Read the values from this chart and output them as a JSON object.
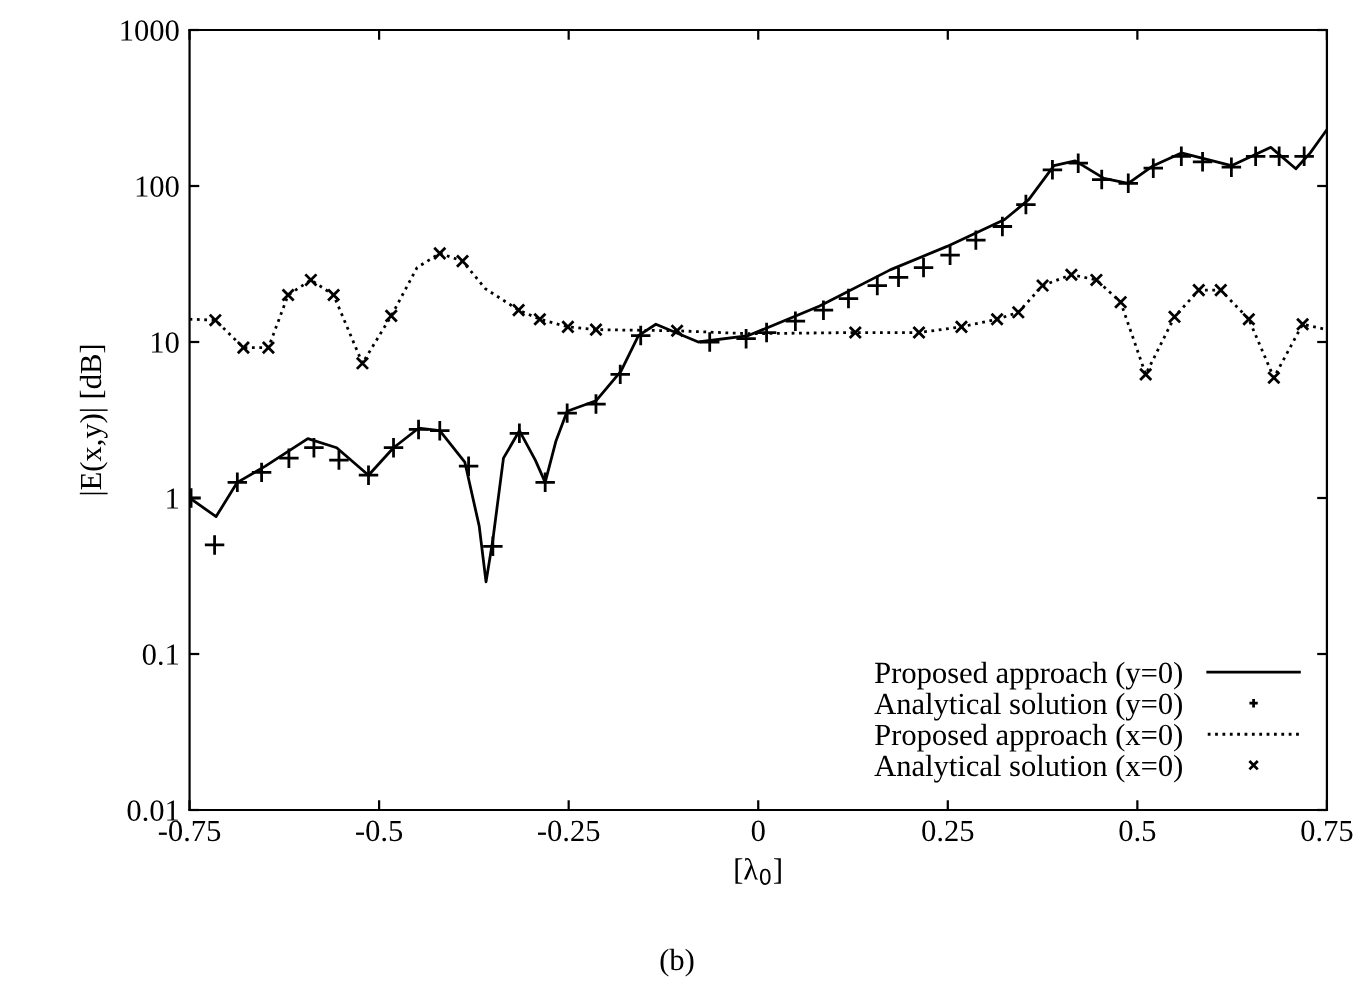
{
  "chart_data": {
    "type": "line",
    "xlabel": "[λ$_{0}$]",
    "ylabel": "|E(x,y)| [dB]",
    "annotations": [
      "(b)"
    ],
    "log": "y",
    "grid": false,
    "legend": "bottom right",
    "xlim": [
      -0.75,
      0.75
    ],
    "xticks": [
      -0.75,
      -0.5,
      -0.25,
      0,
      0.25,
      0.5,
      0.75
    ],
    "ylim": [
      0.01,
      1000
    ],
    "yticks": [
      0.01,
      0.1,
      1,
      10,
      100,
      1000
    ],
    "series": [
      {
        "name": "Proposed approach (y=0)",
        "line_style": "solid",
        "marker": "none",
        "color": "#000000",
        "x": [
          -0.75,
          -0.715,
          -0.687,
          -0.65,
          -0.594,
          -0.556,
          -0.514,
          -0.481,
          -0.448,
          -0.42,
          -0.387,
          -0.368,
          -0.359,
          -0.35,
          -0.336,
          -0.315,
          -0.294,
          -0.281,
          -0.267,
          -0.252,
          -0.214,
          -0.181,
          -0.158,
          -0.135,
          -0.079,
          -0.013,
          0.081,
          0.174,
          0.249,
          0.325,
          0.357,
          0.39,
          0.418,
          0.456,
          0.488,
          0.521,
          0.558,
          0.624,
          0.676,
          0.709,
          0.728,
          0.75
        ],
        "values": [
          1.0,
          0.76,
          1.26,
          1.6,
          2.4,
          2.1,
          1.4,
          2.1,
          2.8,
          2.7,
          1.7,
          0.66,
          0.29,
          0.54,
          1.8,
          2.7,
          1.75,
          1.26,
          2.3,
          3.6,
          4.2,
          6.5,
          11,
          13,
          10,
          11,
          17,
          29,
          41,
          61,
          82,
          135,
          145,
          112,
          104,
          135,
          163,
          135,
          177,
          129,
          163,
          230
        ]
      },
      {
        "name": "Analytical solution (y=0)",
        "type": "scatter",
        "marker": "cross",
        "color": "#000000",
        "x": [
          -0.748,
          -0.717,
          -0.687,
          -0.655,
          -0.619,
          -0.586,
          -0.553,
          -0.514,
          -0.481,
          -0.448,
          -0.42,
          -0.382,
          -0.35,
          -0.315,
          -0.281,
          -0.252,
          -0.214,
          -0.182,
          -0.155,
          -0.064,
          -0.016,
          0.011,
          0.049,
          0.086,
          0.119,
          0.157,
          0.185,
          0.218,
          0.253,
          0.287,
          0.322,
          0.353,
          0.388,
          0.422,
          0.453,
          0.488,
          0.521,
          0.558,
          0.586,
          0.624,
          0.656,
          0.687,
          0.72
        ],
        "values": [
          1.0,
          0.5,
          1.26,
          1.46,
          1.8,
          2.1,
          1.75,
          1.4,
          2.1,
          2.75,
          2.7,
          1.6,
          0.49,
          2.6,
          1.26,
          3.5,
          4.0,
          6.2,
          11,
          10,
          10.5,
          11.5,
          13.6,
          16,
          19,
          23,
          26,
          30,
          36,
          45,
          55,
          76,
          127,
          140,
          110,
          104,
          130,
          155,
          143,
          132,
          155,
          155,
          155
        ]
      },
      {
        "name": "Proposed approach (x=0)",
        "line_style": "dotted",
        "marker": "none",
        "color": "#000000",
        "x": [
          -0.75,
          -0.716,
          -0.679,
          -0.646,
          -0.62,
          -0.59,
          -0.56,
          -0.522,
          -0.484,
          -0.45,
          -0.42,
          -0.39,
          -0.36,
          -0.316,
          -0.288,
          -0.251,
          -0.214,
          -0.107,
          -0.013,
          0.128,
          0.212,
          0.268,
          0.315,
          0.343,
          0.375,
          0.413,
          0.446,
          0.478,
          0.511,
          0.549,
          0.581,
          0.61,
          0.647,
          0.68,
          0.718,
          0.75
        ],
        "values": [
          14,
          13.8,
          9.2,
          9.2,
          20,
          25,
          20,
          7.3,
          14.7,
          30,
          37,
          33,
          22,
          16,
          14,
          12.5,
          12,
          11.8,
          11.3,
          11.5,
          11.5,
          12.5,
          14,
          15.5,
          23,
          27,
          25,
          18,
          6.2,
          14.5,
          21.5,
          21.5,
          14,
          5.9,
          13,
          12
        ]
      },
      {
        "name": "Analytical solution (x=0)",
        "type": "scatter",
        "marker": "cross",
        "color": "#000000",
        "x": [
          -0.716,
          -0.679,
          -0.646,
          -0.62,
          -0.59,
          -0.56,
          -0.522,
          -0.484,
          -0.42,
          -0.39,
          -0.316,
          -0.288,
          -0.251,
          -0.214,
          -0.107,
          -0.013,
          0.128,
          0.212,
          0.268,
          0.315,
          0.343,
          0.375,
          0.413,
          0.446,
          0.478,
          0.511,
          0.549,
          0.581,
          0.61,
          0.647,
          0.68,
          0.718
        ],
        "values": [
          13.8,
          9.2,
          9.2,
          20,
          25,
          20,
          7.3,
          14.7,
          37,
          33,
          16,
          14,
          12.5,
          12,
          11.8,
          null,
          11.5,
          11.5,
          12.5,
          14,
          15.5,
          23,
          27,
          25,
          18,
          6.2,
          14.5,
          21.5,
          21.5,
          14,
          5.9,
          13
        ]
      }
    ]
  }
}
